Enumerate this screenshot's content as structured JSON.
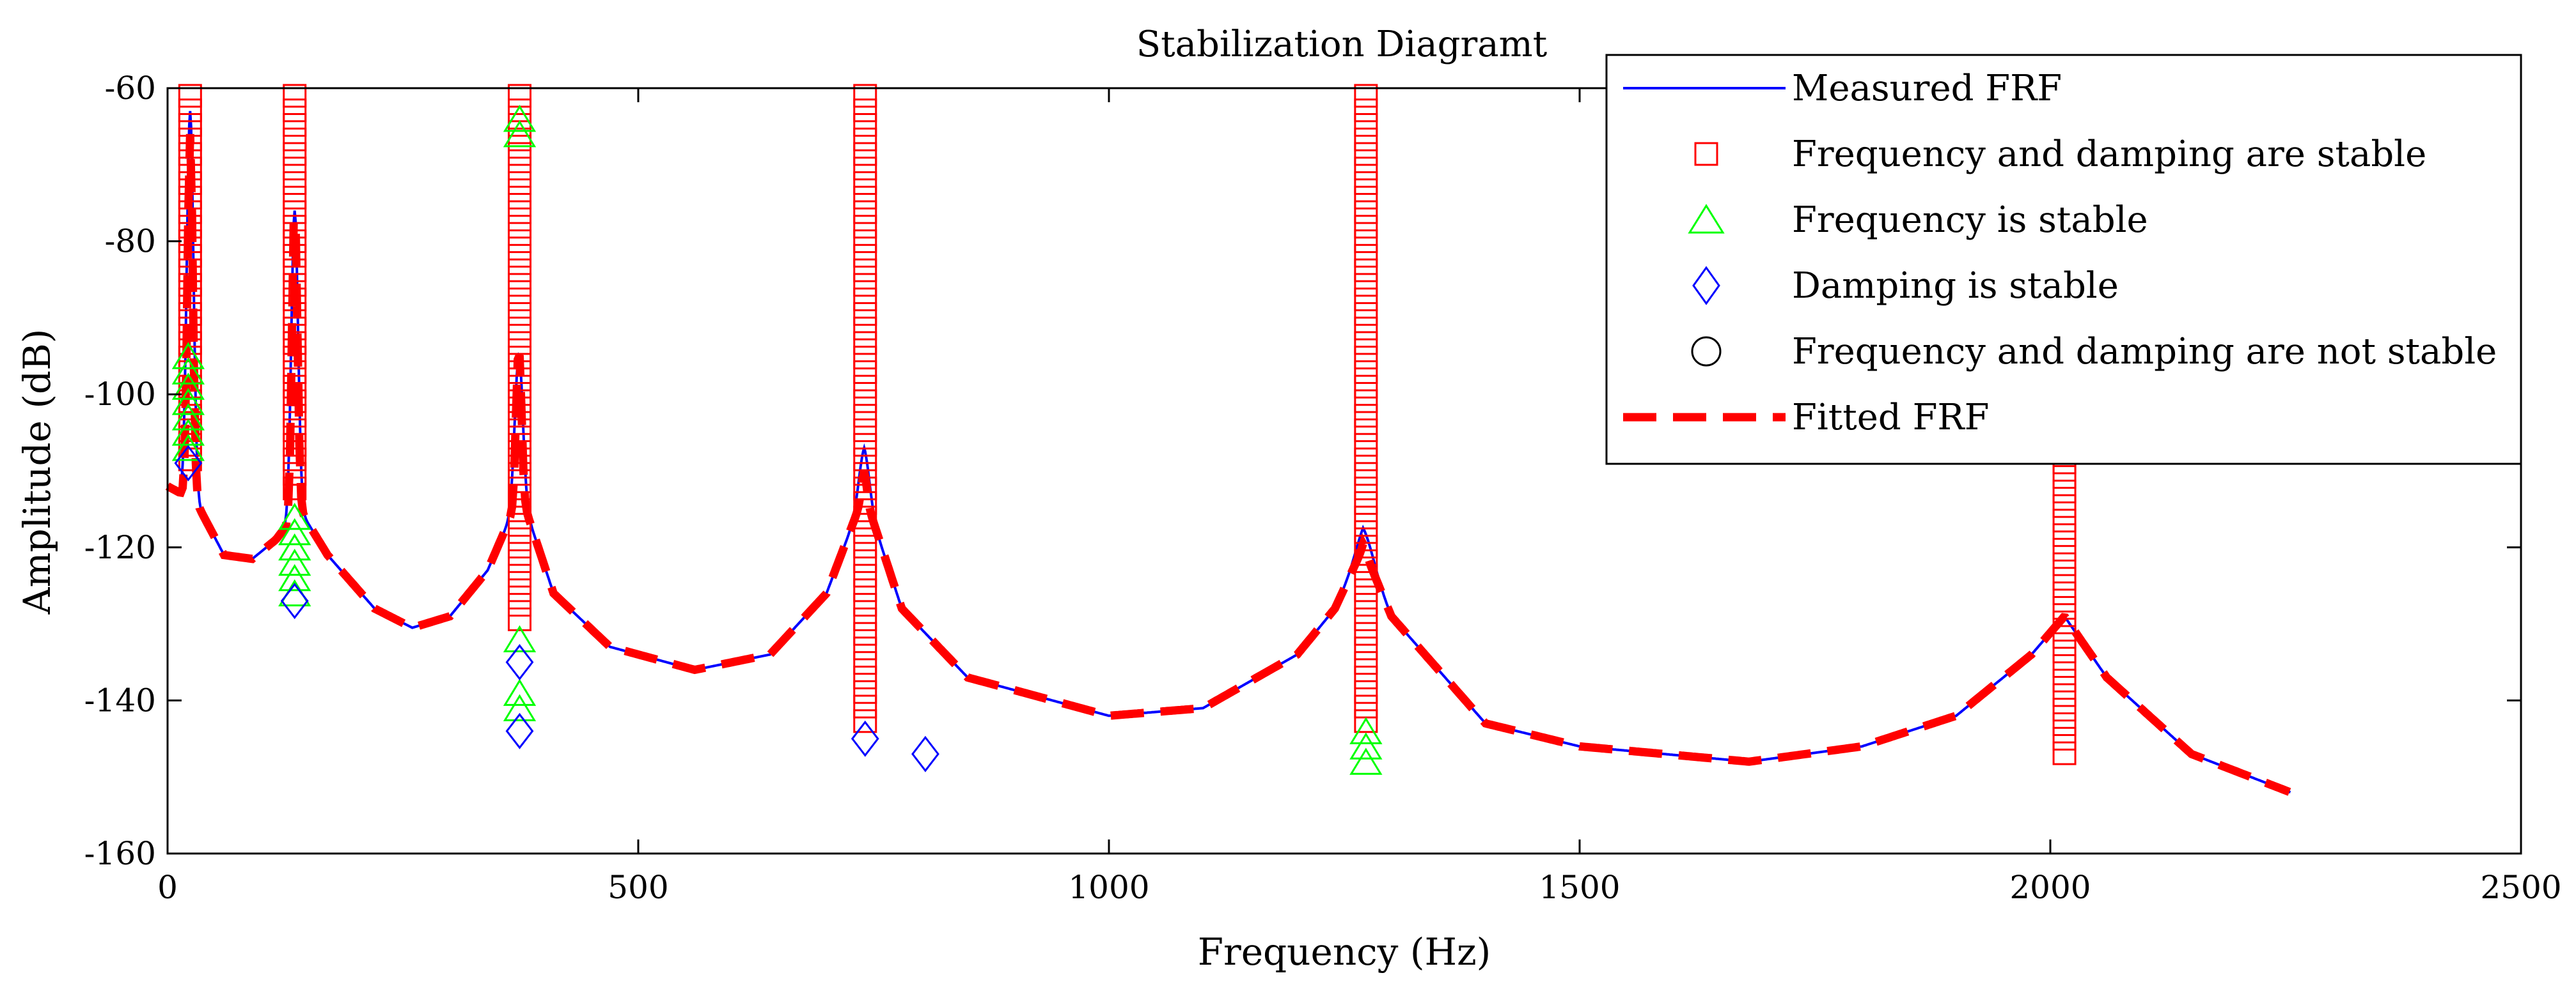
{
  "chart_data": {
    "type": "line",
    "title": "Stabilization Diagramt",
    "xlabel": "Frequency (Hz)",
    "ylabel": "Amplitude (dB)",
    "xlim": [
      0,
      2500
    ],
    "ylim": [
      -160,
      -60
    ],
    "xticks": [
      0,
      500,
      1000,
      1500,
      2000,
      2500
    ],
    "yticks": [
      -160,
      -140,
      -120,
      -100,
      -80,
      -60
    ],
    "grid": false,
    "legend_position": "top-right",
    "legend": [
      {
        "key": "measured",
        "label": "Measured FRF",
        "marker": "line",
        "color": "#0000ff"
      },
      {
        "key": "both_stable",
        "label": "Frequency and damping are stable",
        "marker": "square",
        "color": "#ff0000"
      },
      {
        "key": "freq_stable",
        "label": "Frequency is  stable",
        "marker": "triangle",
        "color": "#00ff00"
      },
      {
        "key": "damp_stable",
        "label": "Damping is stable",
        "marker": "diamond",
        "color": "#0000ff"
      },
      {
        "key": "not_stable",
        "label": "Frequency and damping are not stable",
        "marker": "circle",
        "color": "#000000"
      },
      {
        "key": "fitted",
        "label": "Fitted FRF",
        "marker": "dashed",
        "color": "#ff0000"
      }
    ],
    "frf": {
      "x_end": 2255,
      "baseline": [
        [
          0,
          -112
        ],
        [
          30,
          -114
        ],
        [
          60,
          -121
        ],
        [
          90,
          -121.5
        ],
        [
          115,
          -119
        ],
        [
          140,
          -115
        ],
        [
          170,
          -121
        ],
        [
          220,
          -128
        ],
        [
          260,
          -130.5
        ],
        [
          300,
          -129
        ],
        [
          340,
          -123
        ],
        [
          375,
          -113
        ],
        [
          410,
          -126
        ],
        [
          470,
          -133
        ],
        [
          560,
          -136
        ],
        [
          640,
          -134
        ],
        [
          700,
          -126
        ],
        [
          740,
          -113
        ],
        [
          780,
          -128
        ],
        [
          850,
          -137
        ],
        [
          1000,
          -142
        ],
        [
          1100,
          -141
        ],
        [
          1200,
          -134
        ],
        [
          1240,
          -128
        ],
        [
          1270,
          -120
        ],
        [
          1300,
          -129
        ],
        [
          1400,
          -143
        ],
        [
          1500,
          -146
        ],
        [
          1680,
          -148
        ],
        [
          1800,
          -146
        ],
        [
          1900,
          -142
        ],
        [
          1980,
          -134
        ],
        [
          2015,
          -129
        ],
        [
          2060,
          -137
        ],
        [
          2150,
          -147
        ],
        [
          2255,
          -152
        ]
      ],
      "peaks": [
        {
          "f": 24,
          "peak": -63,
          "width": 5
        },
        {
          "f": 135,
          "peak": -76,
          "width": 5
        },
        {
          "f": 373,
          "peak": -95,
          "width": 6
        },
        {
          "f": 740,
          "peak": -107,
          "width": 8
        },
        {
          "f": 1272,
          "peak": -118,
          "width": 14
        },
        {
          "f": 2015,
          "peak": -129,
          "width": 20
        }
      ]
    },
    "fitted": {
      "peak_caps": [
        {
          "f": 24,
          "peak": -66
        },
        {
          "f": 135,
          "peak": -75
        },
        {
          "f": 373,
          "peak": -94
        },
        {
          "f": 740,
          "peak": -110
        },
        {
          "f": 1272,
          "peak": -120
        },
        {
          "f": 2015,
          "peak": -129
        }
      ]
    },
    "stable_both": [
      {
        "x": 24,
        "y_from": -61,
        "y_to": -110
      },
      {
        "x": 135,
        "y_from": -61,
        "y_to": -114
      },
      {
        "x": 374,
        "y_from": -61,
        "y_to": -131
      },
      {
        "x": 741,
        "y_from": -61,
        "y_to": -143
      },
      {
        "x": 1273,
        "y_from": -61,
        "y_to": -143
      },
      {
        "x": 2015,
        "y_from": -107,
        "y_to": -148
      }
    ],
    "stable_freq": [
      {
        "x": 22,
        "y": -95
      },
      {
        "x": 22,
        "y": -97
      },
      {
        "x": 22,
        "y": -99
      },
      {
        "x": 22,
        "y": -101
      },
      {
        "x": 22,
        "y": -103
      },
      {
        "x": 22,
        "y": -105
      },
      {
        "x": 22,
        "y": -107
      },
      {
        "x": 135,
        "y": -116
      },
      {
        "x": 135,
        "y": -118
      },
      {
        "x": 135,
        "y": -120
      },
      {
        "x": 135,
        "y": -122
      },
      {
        "x": 135,
        "y": -124
      },
      {
        "x": 135,
        "y": -126
      },
      {
        "x": 374,
        "y": -64
      },
      {
        "x": 374,
        "y": -66
      },
      {
        "x": 374,
        "y": -132
      },
      {
        "x": 374,
        "y": -139
      },
      {
        "x": 374,
        "y": -141
      },
      {
        "x": 1273,
        "y": -144
      },
      {
        "x": 1273,
        "y": -146
      },
      {
        "x": 1273,
        "y": -148
      }
    ],
    "stable_damp": [
      {
        "x": 22,
        "y": -109
      },
      {
        "x": 135,
        "y": -127
      },
      {
        "x": 374,
        "y": -135
      },
      {
        "x": 374,
        "y": -144
      },
      {
        "x": 741,
        "y": -145
      },
      {
        "x": 805,
        "y": -147
      }
    ],
    "not_stable": []
  }
}
